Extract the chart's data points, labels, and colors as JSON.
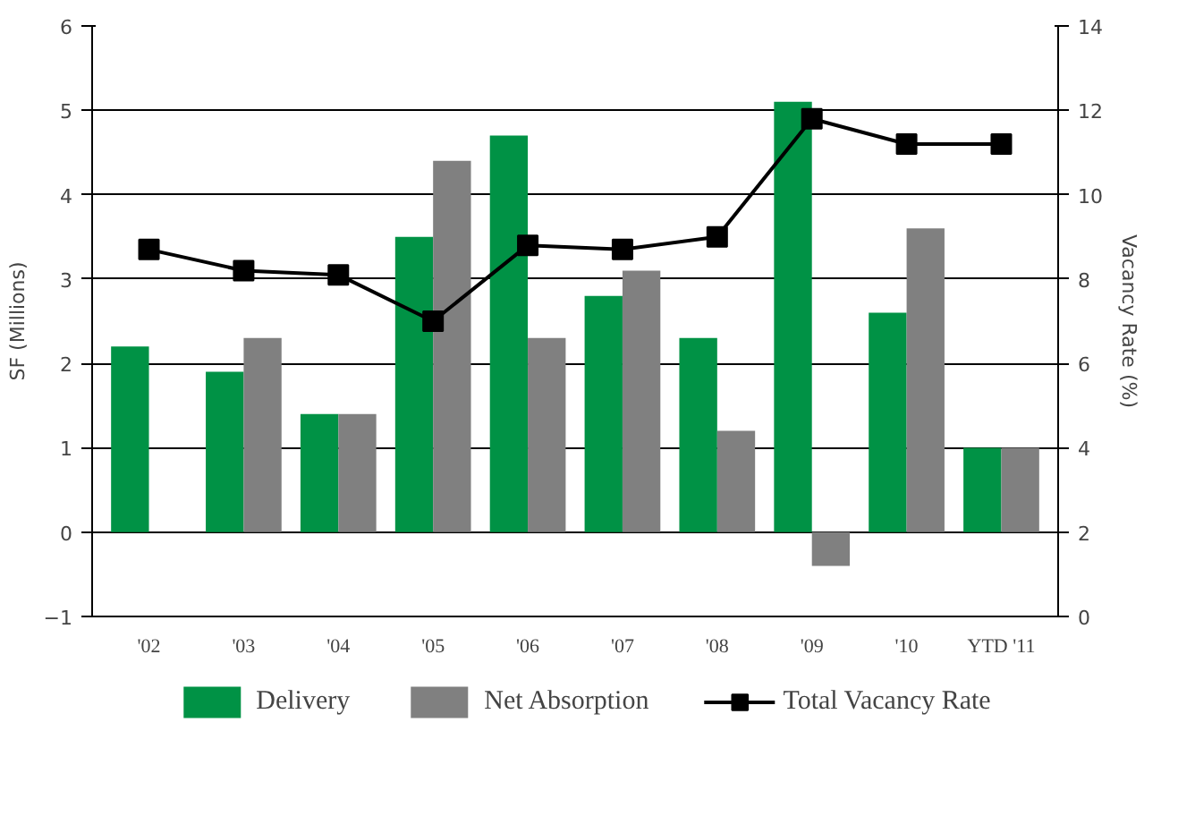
{
  "chart_data": {
    "type": "bar",
    "categories": [
      "'02",
      "'03",
      "'04",
      "'05",
      "'06",
      "'07",
      "'08",
      "'09",
      "'10",
      "YTD '11"
    ],
    "ylabel": "SF (Millions)",
    "y2label": "Vacancy Rate (%)",
    "ylim": [
      -1,
      6
    ],
    "yticks": [
      -1,
      0,
      1,
      2,
      3,
      4,
      5,
      6
    ],
    "y2lim": [
      0,
      14
    ],
    "y2ticks": [
      0,
      2,
      4,
      6,
      8,
      10,
      12,
      14
    ],
    "grid": "y",
    "legend": "bottom",
    "marker": "square",
    "line_style": "solid",
    "series": [
      {
        "name": "Delivery",
        "color": "#009245",
        "values": [
          2.2,
          1.9,
          1.4,
          3.5,
          4.7,
          2.8,
          2.3,
          5.1,
          2.6,
          1.0
        ]
      },
      {
        "name": "Net Absorption",
        "color": "#808080",
        "values": [
          null,
          2.3,
          1.4,
          4.4,
          2.3,
          3.1,
          1.2,
          -0.4,
          3.6,
          1.0
        ]
      },
      {
        "name": "Total Vacancy Rate",
        "color": "#000000",
        "type": "line",
        "axis": "y2",
        "values": [
          8.7,
          8.2,
          8.1,
          7.0,
          8.8,
          8.7,
          9.0,
          11.8,
          11.2,
          11.2
        ]
      }
    ]
  }
}
